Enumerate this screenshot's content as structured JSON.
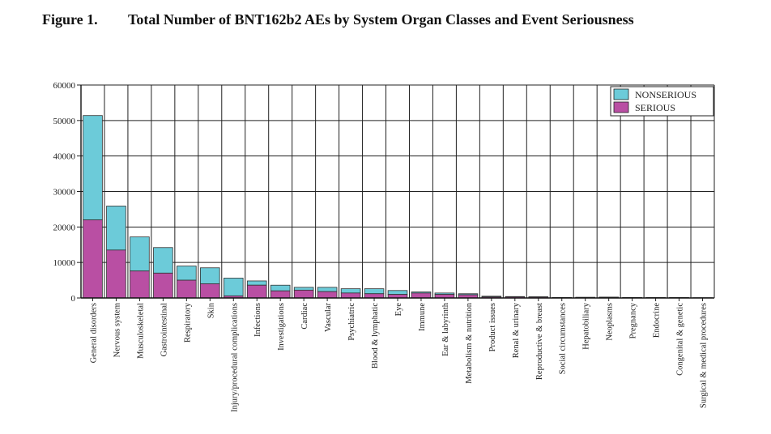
{
  "figure": {
    "label": "Figure 1.",
    "title": "Total Number of BNT162b2 AEs by System Organ Classes and Event Seriousness"
  },
  "chart_data": {
    "type": "bar",
    "stacked": true,
    "categories": [
      "General disorders",
      "Nervous system",
      "Musculoskeletal",
      "Gastrointestinal",
      "Respiratory",
      "Skin",
      "Injury/procedural complications",
      "Infections",
      "Investigations",
      "Cardiac",
      "Vascular",
      "Psychiatric",
      "Blood & lymphatic",
      "Eye",
      "Immune",
      "Ear & labyrinth",
      "Metabolism & nutrition",
      "Product issues",
      "Renal & urinary",
      "Reproductive & breast",
      "Social circumstances",
      "Hepatobiliary",
      "Neoplasms",
      "Pregnancy",
      "Endocrine",
      "Congenital & genetic",
      "Surgical & medical procedures"
    ],
    "series": [
      {
        "name": "SERIOUS",
        "color": "#b94fa3",
        "values": [
          22000,
          13500,
          7600,
          7000,
          5000,
          4000,
          600,
          3600,
          2000,
          2200,
          1800,
          1400,
          1200,
          1000,
          1400,
          1000,
          900,
          300,
          300,
          250,
          100,
          150,
          200,
          100,
          100,
          100,
          50
        ]
      },
      {
        "name": "NONSERIOUS",
        "color": "#6ccbd9",
        "values": [
          29400,
          12400,
          9600,
          7200,
          4000,
          4500,
          5000,
          1200,
          1600,
          800,
          1200,
          1200,
          1400,
          1100,
          300,
          400,
          300,
          200,
          100,
          100,
          50,
          50,
          50,
          50,
          20,
          20,
          20
        ]
      }
    ],
    "y_ticks": [
      "0",
      "10000",
      "20000",
      "30000",
      "40000",
      "50000",
      "60000"
    ],
    "ylim": [
      0,
      60000
    ],
    "grid": true,
    "legend": {
      "position": "top-right",
      "entries": [
        "NONSERIOUS",
        "SERIOUS"
      ]
    }
  }
}
